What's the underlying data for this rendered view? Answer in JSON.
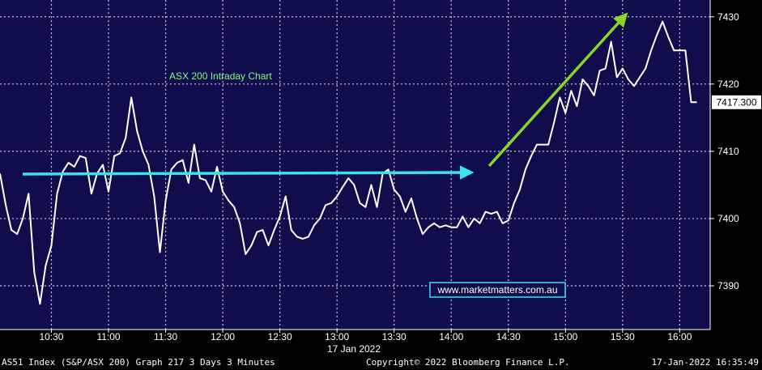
{
  "chart_data": {
    "type": "line",
    "title": "ASX 200 Intraday Chart",
    "date_label": "17 Jan 2022",
    "watermark": "www.marketmatters.com.au",
    "last_price_label": "7417.300",
    "x_ticks": [
      "10:30",
      "11:00",
      "11:30",
      "12:00",
      "12:30",
      "13:00",
      "13:30",
      "14:00",
      "14:30",
      "15:00",
      "15:30",
      "16:00"
    ],
    "y_ticks": [
      7390,
      7400,
      7410,
      7420,
      7430
    ],
    "xlim": [
      "10:03",
      "16:16"
    ],
    "ylim": [
      7383.5,
      7432.5
    ],
    "grid": true,
    "colors": {
      "background": "#0f0d4c",
      "line": "#ffffff",
      "grid": "#c8c8dc",
      "title": "#7fff7f",
      "flat_arrow": "#3ee0ee",
      "up_arrow": "#8ad62a",
      "watermark_border": "#3ee0ee"
    },
    "series": [
      {
        "x": [
          "10:03",
          "10:06",
          "10:09",
          "10:12",
          "10:15",
          "10:18",
          "10:21",
          "10:24",
          "10:27",
          "10:30",
          "10:33",
          "10:36",
          "10:39",
          "10:42",
          "10:45",
          "10:48",
          "10:51",
          "10:54",
          "10:57",
          "11:00",
          "11:03",
          "11:06",
          "11:09",
          "11:12",
          "11:15",
          "11:18",
          "11:21",
          "11:24",
          "11:27",
          "11:30",
          "11:33",
          "11:36",
          "11:39",
          "11:42",
          "11:45",
          "11:48",
          "11:51",
          "11:54",
          "11:57",
          "12:00",
          "12:03",
          "12:06",
          "12:09",
          "12:12",
          "12:15",
          "12:18",
          "12:21",
          "12:24",
          "12:27",
          "12:30",
          "12:33",
          "12:36",
          "12:39",
          "12:42",
          "12:45",
          "12:48",
          "12:51",
          "12:54",
          "12:57",
          "13:00",
          "13:03",
          "13:06",
          "13:09",
          "13:12",
          "13:15",
          "13:18",
          "13:21",
          "13:24",
          "13:27",
          "13:30",
          "13:33",
          "13:36",
          "13:39",
          "13:42",
          "13:45",
          "13:48",
          "13:51",
          "13:54",
          "13:57",
          "14:00",
          "14:03",
          "14:06",
          "14:09",
          "14:12",
          "14:15",
          "14:18",
          "14:21",
          "14:24",
          "14:27",
          "14:30",
          "14:33",
          "14:36",
          "14:39",
          "14:42",
          "14:45",
          "14:48",
          "14:51",
          "14:54",
          "14:57",
          "15:00",
          "15:03",
          "15:06",
          "15:09",
          "15:12",
          "15:15",
          "15:18",
          "15:21",
          "15:24",
          "15:27",
          "15:30",
          "15:33",
          "15:36",
          "15:39",
          "15:42",
          "15:45",
          "15:48",
          "15:51",
          "15:54",
          "15:57",
          "16:00",
          "16:03",
          "16:06",
          "16:09"
        ],
        "y": [
          7406.7,
          7402.0,
          7398.3,
          7397.7,
          7400.0,
          7403.7,
          7392.0,
          7387.3,
          7393.0,
          7396.0,
          7403.7,
          7407.0,
          7408.3,
          7407.7,
          7409.3,
          7409.0,
          7403.7,
          7406.7,
          7408.0,
          7404.0,
          7409.3,
          7409.7,
          7412.0,
          7418.0,
          7413.0,
          7410.0,
          7408.0,
          7403.3,
          7395.0,
          7402.7,
          7407.3,
          7408.3,
          7408.7,
          7405.3,
          7411.0,
          7406.0,
          7405.7,
          7404.0,
          7407.7,
          7404.0,
          7402.7,
          7401.7,
          7399.3,
          7394.7,
          7396.0,
          7398.0,
          7398.3,
          7396.0,
          7398.3,
          7400.3,
          7403.3,
          7398.3,
          7397.3,
          7397.0,
          7397.3,
          7399.0,
          7400.0,
          7402.0,
          7402.3,
          7403.3,
          7404.7,
          7406.0,
          7405.0,
          7402.3,
          7401.7,
          7405.0,
          7401.7,
          7406.7,
          7407.3,
          7404.3,
          7403.3,
          7401.0,
          7403.0,
          7400.0,
          7397.7,
          7398.7,
          7399.3,
          7398.7,
          7399.0,
          7398.7,
          7398.7,
          7400.3,
          7398.7,
          7400.0,
          7399.3,
          7401.0,
          7400.7,
          7401.0,
          7399.3,
          7399.7,
          7402.3,
          7404.3,
          7407.3,
          7409.3,
          7411.0,
          7411.0,
          7411.0,
          7414.3,
          7418.0,
          7415.7,
          7419.0,
          7416.7,
          7420.7,
          7419.7,
          7418.3,
          7422.0,
          7422.3,
          7426.3,
          7421.0,
          7422.3,
          7420.7,
          7419.7,
          7421.0,
          7422.3,
          7425.0,
          7427.3,
          7429.3,
          7427.0,
          7425.0,
          7425.0,
          7425.0,
          7417.3,
          7417.3
        ]
      }
    ]
  },
  "footer": {
    "left": "AS51 Index (S&P/ASX 200) Graph 217 3 Days 3 Minutes",
    "center": "Copyright© 2022 Bloomberg Finance L.P.",
    "right": "17-Jan-2022 16:35:49"
  }
}
